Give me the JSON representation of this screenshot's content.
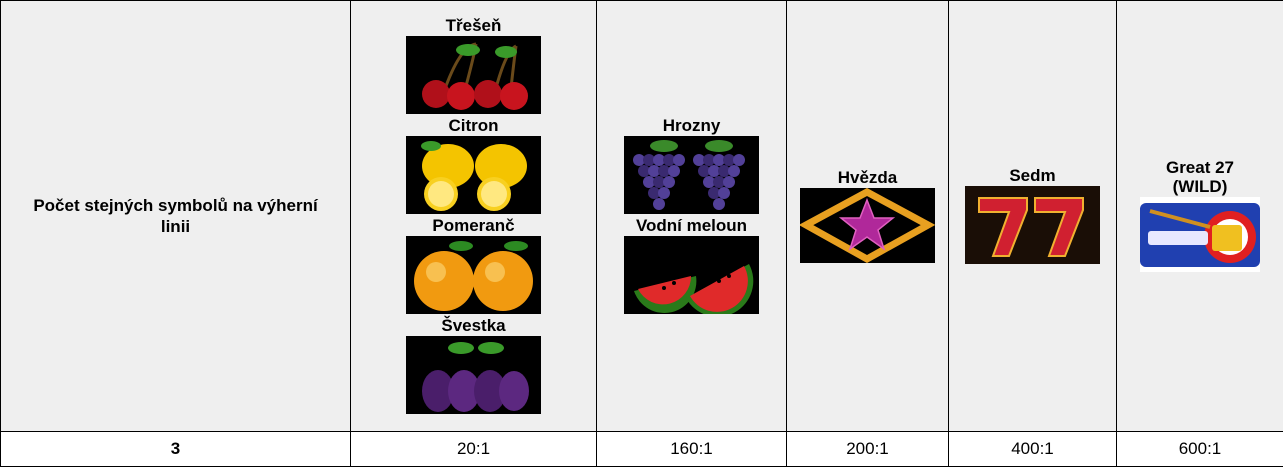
{
  "table": {
    "header": {
      "label": "Počet stejných symbolů na výherní linii",
      "columns": [
        [
          "Třešeň",
          "Citron",
          "Pomeranč",
          "Švestka"
        ],
        [
          "Hrozny",
          "Vodní meloun"
        ],
        [
          "Hvězda"
        ],
        [
          "Sedm"
        ],
        [
          "Great 27 (WILD)"
        ]
      ]
    },
    "rows": [
      [
        "3",
        "20:1",
        "160:1",
        "200:1",
        "400:1",
        "600:1"
      ]
    ]
  }
}
